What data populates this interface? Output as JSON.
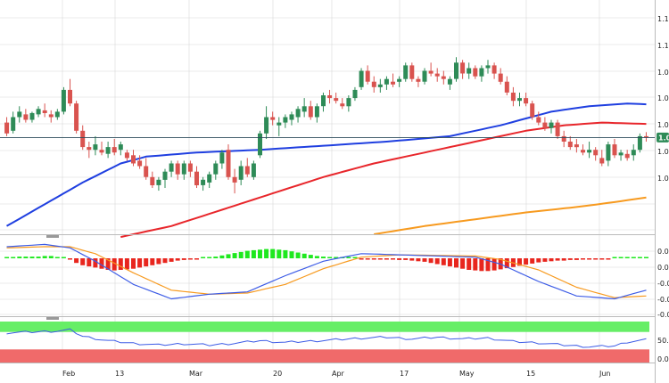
{
  "colors": {
    "bull": "#2e8b57",
    "bear": "#d9534f",
    "sma_short": "#1f3fe0",
    "sma_mid": "#e8262b",
    "sma_long": "#f79a1f",
    "macd_line": "#3d5ce6",
    "signal_line": "#f79a1f",
    "hist_pos": "#1ee81e",
    "hist_neg": "#e8261e",
    "rsi_line": "#3d5ce6",
    "ob_zone": "#66ee66",
    "os_zone": "#f06a6a",
    "grid": "#d8d8d8",
    "label_bg": "#2e8b57"
  },
  "price_label": "1.0",
  "chart_data": [
    {
      "type": "candlestick",
      "title": "",
      "x_labels": [
        "Feb",
        "13",
        "Mar",
        "20",
        "Apr",
        "17",
        "May",
        "15",
        "Jun"
      ],
      "y_tick_labels": [
        "1.1",
        "1.1",
        "1.0",
        "1.0",
        "1.0",
        "1.0",
        "1.0"
      ],
      "ylim": [
        1.045,
        1.131
      ],
      "grid": true,
      "candles": [
        [
          1.086,
          1.088,
          1.081,
          1.082
        ],
        [
          1.083,
          1.09,
          1.082,
          1.088
        ],
        [
          1.088,
          1.092,
          1.086,
          1.09
        ],
        [
          1.089,
          1.091,
          1.086,
          1.087
        ],
        [
          1.087,
          1.09,
          1.086,
          1.0895
        ],
        [
          1.089,
          1.092,
          1.088,
          1.091
        ],
        [
          1.0905,
          1.093,
          1.088,
          1.0895
        ],
        [
          1.089,
          1.0905,
          1.086,
          1.088
        ],
        [
          1.088,
          1.091,
          1.087,
          1.09
        ],
        [
          1.09,
          1.099,
          1.089,
          1.098
        ],
        [
          1.098,
          1.102,
          1.092,
          1.093
        ],
        [
          1.093,
          1.094,
          1.082,
          1.083
        ],
        [
          1.083,
          1.085,
          1.076,
          1.077
        ],
        [
          1.077,
          1.079,
          1.073,
          1.076
        ],
        [
          1.076,
          1.081,
          1.074,
          1.078
        ],
        [
          1.076,
          1.079,
          1.074,
          1.075
        ],
        [
          1.0745,
          1.079,
          1.073,
          1.077
        ],
        [
          1.077,
          1.08,
          1.074,
          1.075
        ],
        [
          1.076,
          1.079,
          1.074,
          1.078
        ],
        [
          1.075,
          1.076,
          1.072,
          1.073
        ],
        [
          1.074,
          1.076,
          1.07,
          1.071
        ],
        [
          1.072,
          1.074,
          1.069,
          1.07
        ],
        [
          1.07,
          1.073,
          1.065,
          1.066
        ],
        [
          1.066,
          1.068,
          1.062,
          1.063
        ],
        [
          1.063,
          1.066,
          1.061,
          1.065
        ],
        [
          1.065,
          1.069,
          1.062,
          1.068
        ],
        [
          1.068,
          1.072,
          1.066,
          1.071
        ],
        [
          1.071,
          1.072,
          1.065,
          1.067
        ],
        [
          1.067,
          1.072,
          1.065,
          1.071
        ],
        [
          1.071,
          1.072,
          1.066,
          1.068
        ],
        [
          1.068,
          1.07,
          1.062,
          1.063
        ],
        [
          1.063,
          1.066,
          1.061,
          1.065
        ],
        [
          1.064,
          1.068,
          1.062,
          1.067
        ],
        [
          1.067,
          1.072,
          1.065,
          1.071
        ],
        [
          1.071,
          1.076,
          1.069,
          1.075
        ],
        [
          1.076,
          1.078,
          1.065,
          1.066
        ],
        [
          1.066,
          1.069,
          1.06,
          1.064
        ],
        [
          1.065,
          1.072,
          1.063,
          1.07
        ],
        [
          1.07,
          1.073,
          1.066,
          1.067
        ],
        [
          1.066,
          1.072,
          1.065,
          1.071
        ],
        [
          1.074,
          1.083,
          1.073,
          1.082
        ],
        [
          1.082,
          1.092,
          1.08,
          1.088
        ],
        [
          1.088,
          1.09,
          1.085,
          1.087
        ],
        [
          1.085,
          1.088,
          1.081,
          1.086
        ],
        [
          1.086,
          1.089,
          1.084,
          1.088
        ],
        [
          1.087,
          1.09,
          1.085,
          1.089
        ],
        [
          1.088,
          1.092,
          1.086,
          1.091
        ],
        [
          1.09,
          1.095,
          1.088,
          1.092
        ],
        [
          1.092,
          1.094,
          1.087,
          1.088
        ],
        [
          1.088,
          1.093,
          1.086,
          1.092
        ],
        [
          1.092,
          1.097,
          1.09,
          1.096
        ],
        [
          1.096,
          1.098,
          1.093,
          1.095
        ],
        [
          1.095,
          1.097,
          1.093,
          1.094
        ],
        [
          1.093,
          1.095,
          1.091,
          1.092
        ],
        [
          1.092,
          1.096,
          1.09,
          1.095
        ],
        [
          1.095,
          1.099,
          1.094,
          1.098
        ],
        [
          1.099,
          1.106,
          1.098,
          1.105
        ],
        [
          1.105,
          1.107,
          1.1,
          1.101
        ],
        [
          1.101,
          1.103,
          1.097,
          1.099
        ],
        [
          1.099,
          1.102,
          1.097,
          1.1
        ],
        [
          1.1,
          1.103,
          1.098,
          1.102
        ],
        [
          1.101,
          1.104,
          1.099,
          1.1
        ],
        [
          1.101,
          1.103,
          1.099,
          1.102
        ],
        [
          1.102,
          1.108,
          1.101,
          1.107
        ],
        [
          1.107,
          1.108,
          1.101,
          1.102
        ],
        [
          1.102,
          1.103,
          1.099,
          1.101
        ],
        [
          1.101,
          1.106,
          1.1,
          1.105
        ],
        [
          1.105,
          1.108,
          1.103,
          1.104
        ],
        [
          1.104,
          1.106,
          1.101,
          1.103
        ],
        [
          1.103,
          1.105,
          1.1,
          1.102
        ],
        [
          1.1,
          1.103,
          1.098,
          1.102
        ],
        [
          1.102,
          1.11,
          1.101,
          1.108
        ],
        [
          1.108,
          1.109,
          1.102,
          1.104
        ],
        [
          1.104,
          1.108,
          1.102,
          1.106
        ],
        [
          1.106,
          1.107,
          1.102,
          1.103
        ],
        [
          1.103,
          1.107,
          1.101,
          1.106
        ],
        [
          1.106,
          1.109,
          1.104,
          1.107
        ],
        [
          1.107,
          1.108,
          1.102,
          1.104
        ],
        [
          1.104,
          1.106,
          1.1,
          1.101
        ],
        [
          1.101,
          1.103,
          1.096,
          1.097
        ],
        [
          1.097,
          1.099,
          1.092,
          1.094
        ],
        [
          1.094,
          1.097,
          1.092,
          1.095
        ],
        [
          1.095,
          1.097,
          1.092,
          1.093
        ],
        [
          1.093,
          1.094,
          1.087,
          1.088
        ],
        [
          1.088,
          1.09,
          1.085,
          1.086
        ],
        [
          1.086,
          1.088,
          1.083,
          1.084
        ],
        [
          1.084,
          1.087,
          1.082,
          1.086
        ],
        [
          1.086,
          1.087,
          1.08,
          1.081
        ],
        [
          1.081,
          1.083,
          1.077,
          1.079
        ],
        [
          1.079,
          1.081,
          1.076,
          1.077
        ],
        [
          1.078,
          1.08,
          1.075,
          1.077
        ],
        [
          1.076,
          1.078,
          1.074,
          1.075
        ],
        [
          1.075,
          1.079,
          1.073,
          1.076
        ],
        [
          1.076,
          1.077,
          1.072,
          1.074
        ],
        [
          1.073,
          1.076,
          1.07,
          1.071
        ],
        [
          1.072,
          1.079,
          1.07,
          1.078
        ],
        [
          1.078,
          1.08,
          1.073,
          1.074
        ],
        [
          1.074,
          1.076,
          1.072,
          1.075
        ],
        [
          1.0745,
          1.076,
          1.072,
          1.073
        ],
        [
          1.074,
          1.078,
          1.072,
          1.076
        ],
        [
          1.076,
          1.082,
          1.075,
          1.081
        ],
        [
          1.081,
          1.0825,
          1.079,
          1.0805
        ]
      ],
      "sma_short": [
        [
          0,
          1.048
        ],
        [
          6,
          1.056
        ],
        [
          12,
          1.064
        ],
        [
          18,
          1.071
        ],
        [
          22,
          1.0735
        ],
        [
          30,
          1.075
        ],
        [
          40,
          1.076
        ],
        [
          50,
          1.0775
        ],
        [
          60,
          1.079
        ],
        [
          70,
          1.081
        ],
        [
          78,
          1.085
        ],
        [
          86,
          1.09
        ],
        [
          92,
          1.092
        ],
        [
          98,
          1.093
        ],
        [
          101,
          1.0927
        ]
      ],
      "sma_mid": [
        [
          18,
          1.044
        ],
        [
          26,
          1.048
        ],
        [
          34,
          1.054
        ],
        [
          42,
          1.06
        ],
        [
          50,
          1.066
        ],
        [
          58,
          1.071
        ],
        [
          66,
          1.075
        ],
        [
          74,
          1.079
        ],
        [
          82,
          1.083
        ],
        [
          88,
          1.085
        ],
        [
          94,
          1.086
        ],
        [
          101,
          1.0855
        ]
      ],
      "sma_long": [
        [
          58,
          1.045
        ],
        [
          66,
          1.048
        ],
        [
          74,
          1.0505
        ],
        [
          82,
          1.053
        ],
        [
          90,
          1.055
        ],
        [
          96,
          1.0568
        ],
        [
          101,
          1.0585
        ]
      ],
      "current_price": 1.0805
    },
    {
      "type": "macd",
      "y_tick_labels": [
        "0.0",
        "0.0",
        "-0.0",
        "-0.0",
        "-0.0"
      ],
      "ylim": [
        -0.01,
        0.004
      ],
      "macd": [
        [
          0,
          0.002
        ],
        [
          6,
          0.0024
        ],
        [
          10,
          0.0018
        ],
        [
          14,
          -0.0005
        ],
        [
          20,
          -0.0045
        ],
        [
          26,
          -0.007
        ],
        [
          32,
          -0.0062
        ],
        [
          38,
          -0.0058
        ],
        [
          44,
          -0.003
        ],
        [
          50,
          -0.0005
        ],
        [
          56,
          0.0008
        ],
        [
          62,
          0.0006
        ],
        [
          68,
          0.0004
        ],
        [
          74,
          0.0002
        ],
        [
          78,
          -0.001
        ],
        [
          84,
          -0.004
        ],
        [
          90,
          -0.0065
        ],
        [
          96,
          -0.007
        ],
        [
          101,
          -0.0055
        ]
      ],
      "signal": [
        [
          0,
          0.0018
        ],
        [
          6,
          0.002
        ],
        [
          10,
          0.002
        ],
        [
          14,
          0.0008
        ],
        [
          20,
          -0.0025
        ],
        [
          26,
          -0.0055
        ],
        [
          32,
          -0.0062
        ],
        [
          38,
          -0.006
        ],
        [
          44,
          -0.0045
        ],
        [
          50,
          -0.0018
        ],
        [
          56,
          0.0002
        ],
        [
          62,
          0.0006
        ],
        [
          68,
          0.0005
        ],
        [
          74,
          0.0004
        ],
        [
          78,
          -0.0002
        ],
        [
          84,
          -0.002
        ],
        [
          90,
          -0.005
        ],
        [
          96,
          -0.0068
        ],
        [
          101,
          -0.0065
        ]
      ],
      "histogram": [
        0.0002,
        0.0002,
        0.0003,
        0.0003,
        0.0003,
        0.0003,
        0.0004,
        0.0004,
        0.0002,
        0.0001,
        -0.0002,
        -0.0008,
        -0.0012,
        -0.0014,
        -0.0016,
        -0.0018,
        -0.002,
        -0.0021,
        -0.002,
        -0.0019,
        -0.0018,
        -0.0016,
        -0.0014,
        -0.0012,
        -0.001,
        -0.0008,
        -0.0006,
        -0.0004,
        -0.0003,
        -0.0002,
        -0.0001,
        0.0,
        0.0001,
        0.0003,
        0.0005,
        0.0007,
        0.0009,
        0.0011,
        0.0013,
        0.0014,
        0.0015,
        0.0016,
        0.0016,
        0.0015,
        0.0014,
        0.0012,
        0.001,
        0.0008,
        0.0006,
        0.0004,
        0.0003,
        0.0002,
        0.0001,
        0.0001,
        0.0,
        0.0,
        -0.0001,
        -0.0001,
        -0.0002,
        -0.0002,
        -0.0002,
        -0.0002,
        -0.0003,
        -0.0003,
        -0.0004,
        -0.0005,
        -0.0006,
        -0.0008,
        -0.001,
        -0.0012,
        -0.0014,
        -0.0016,
        -0.0018,
        -0.002,
        -0.0021,
        -0.0022,
        -0.0022,
        -0.0021,
        -0.0019,
        -0.0017,
        -0.0015,
        -0.0013,
        -0.0011,
        -0.0009,
        -0.0007,
        -0.0006,
        -0.0005,
        -0.0004,
        -0.0004,
        -0.0003,
        -0.0003,
        -0.0002,
        -0.0002,
        -0.0002,
        -0.0001,
        -0.0001,
        0.0,
        0.0,
        0.0001,
        0.0001,
        0.0002,
        0.0002
      ]
    },
    {
      "type": "rsi",
      "y_tick_labels": [
        "50.",
        "0.0"
      ],
      "ylim": [
        0,
        100
      ],
      "overbought": 70,
      "oversold": 30,
      "values": [
        [
          0,
          68
        ],
        [
          4,
          70
        ],
        [
          8,
          72
        ],
        [
          10,
          75
        ],
        [
          12,
          60
        ],
        [
          16,
          50
        ],
        [
          20,
          44
        ],
        [
          24,
          40
        ],
        [
          28,
          43
        ],
        [
          32,
          40
        ],
        [
          36,
          44
        ],
        [
          40,
          50
        ],
        [
          44,
          46
        ],
        [
          48,
          49
        ],
        [
          52,
          52
        ],
        [
          56,
          56
        ],
        [
          60,
          58
        ],
        [
          64,
          54
        ],
        [
          68,
          58
        ],
        [
          72,
          54
        ],
        [
          76,
          56
        ],
        [
          80,
          48
        ],
        [
          84,
          45
        ],
        [
          88,
          40
        ],
        [
          92,
          36
        ],
        [
          96,
          38
        ],
        [
          98,
          47
        ],
        [
          101,
          52
        ]
      ]
    }
  ]
}
